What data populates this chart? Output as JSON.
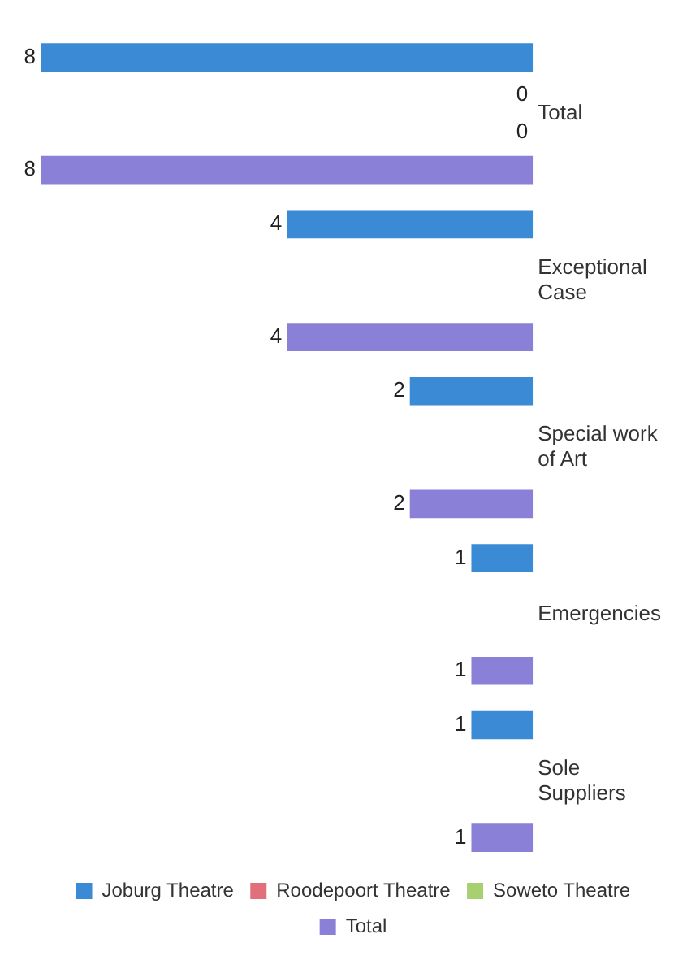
{
  "chart_data": {
    "type": "bar",
    "orientation": "horizontal",
    "categories": [
      "Total",
      "Exceptional Case",
      "Special work of Art",
      "Emergencies",
      "Sole Suppliers"
    ],
    "series": [
      {
        "name": "Joburg Theatre",
        "color": "#3b8ad6",
        "values": [
          8,
          4,
          2,
          1,
          1
        ]
      },
      {
        "name": "Roodepoort Theatre",
        "color": "#e0707a",
        "values": [
          0,
          null,
          null,
          null,
          null
        ]
      },
      {
        "name": "Soweto Theatre",
        "color": "#a8d070",
        "values": [
          0,
          null,
          null,
          null,
          null
        ]
      },
      {
        "name": "Total",
        "color": "#8a80d8",
        "values": [
          8,
          4,
          2,
          1,
          1
        ]
      }
    ],
    "data_labels": true,
    "legend": "bottom",
    "tick_labels": "y",
    "grid": false
  }
}
